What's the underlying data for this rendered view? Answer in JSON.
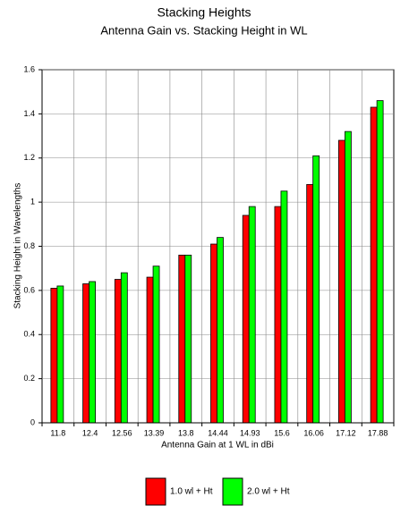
{
  "chart_data": {
    "type": "bar",
    "title": "Stacking Heights",
    "subtitle": "Antenna Gain vs. Stacking Height in WL",
    "x_label": "Antenna Gain at 1 WL in dBi",
    "y_label": "Stacking Height in Wavelengths",
    "categories": [
      "11.8",
      "12.4",
      "12.56",
      "13.39",
      "13.8",
      "14.44",
      "14.93",
      "15.6",
      "16.06",
      "17.12",
      "17.88"
    ],
    "series": [
      {
        "name": "1.0 wl + Ht",
        "color": "#ff0000",
        "values": [
          0.61,
          0.63,
          0.65,
          0.66,
          0.76,
          0.81,
          0.94,
          0.98,
          1.08,
          1.28,
          1.43
        ]
      },
      {
        "name": "2.0 wl + Ht",
        "color": "#00ff00",
        "values": [
          0.62,
          0.64,
          0.68,
          0.71,
          0.76,
          0.84,
          0.98,
          1.05,
          1.21,
          1.32,
          1.46
        ]
      }
    ],
    "ylim": [
      0,
      1.6
    ],
    "yticks": [
      0,
      0.2,
      0.4,
      0.6,
      0.8,
      1,
      1.2,
      1.4,
      1.6
    ],
    "grid": true,
    "legend": "bottom"
  }
}
